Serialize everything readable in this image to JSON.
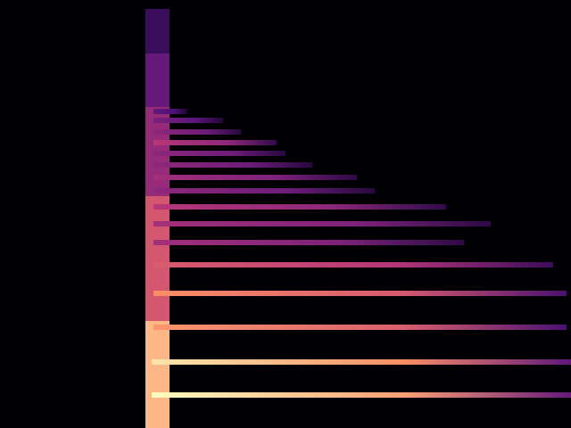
{
  "chart_data": {
    "type": "spectrogram",
    "xlim": [
      0,
      640
    ],
    "ylim": [
      0,
      480
    ],
    "tick_labels": false,
    "grid": false,
    "harmonics": [
      {
        "y": 37,
        "start": 170,
        "end": 640,
        "level": 1.0
      },
      {
        "y": 74,
        "start": 170,
        "end": 640,
        "level": 0.95
      },
      {
        "y": 113,
        "start": 172,
        "end": 635,
        "level": 0.78
      },
      {
        "y": 151,
        "start": 172,
        "end": 635,
        "level": 0.76
      },
      {
        "y": 183,
        "start": 172,
        "end": 620,
        "level": 0.62
      },
      {
        "y": 208,
        "start": 172,
        "end": 520,
        "level": 0.45
      },
      {
        "y": 229,
        "start": 172,
        "end": 550,
        "level": 0.45
      },
      {
        "y": 248,
        "start": 172,
        "end": 500,
        "level": 0.5
      },
      {
        "y": 266,
        "start": 172,
        "end": 420,
        "level": 0.4
      },
      {
        "y": 281,
        "start": 172,
        "end": 400,
        "level": 0.45
      },
      {
        "y": 295,
        "start": 172,
        "end": 350,
        "level": 0.4
      },
      {
        "y": 308,
        "start": 172,
        "end": 320,
        "level": 0.4
      },
      {
        "y": 320,
        "start": 172,
        "end": 310,
        "level": 0.5
      },
      {
        "y": 332,
        "start": 172,
        "end": 270,
        "level": 0.4
      },
      {
        "y": 345,
        "start": 172,
        "end": 250,
        "level": 0.35
      },
      {
        "y": 355,
        "start": 172,
        "end": 210,
        "level": 0.3
      }
    ],
    "onset": {
      "x": [
        163,
        190
      ],
      "segments": [
        {
          "low": 0,
          "high": 120,
          "level": 0.85
        },
        {
          "low": 120,
          "high": 260,
          "level": 0.6
        },
        {
          "low": 260,
          "high": 360,
          "level": 0.42
        },
        {
          "low": 360,
          "high": 420,
          "level": 0.3
        },
        {
          "low": 420,
          "high": 470,
          "level": 0.18
        }
      ]
    }
  }
}
